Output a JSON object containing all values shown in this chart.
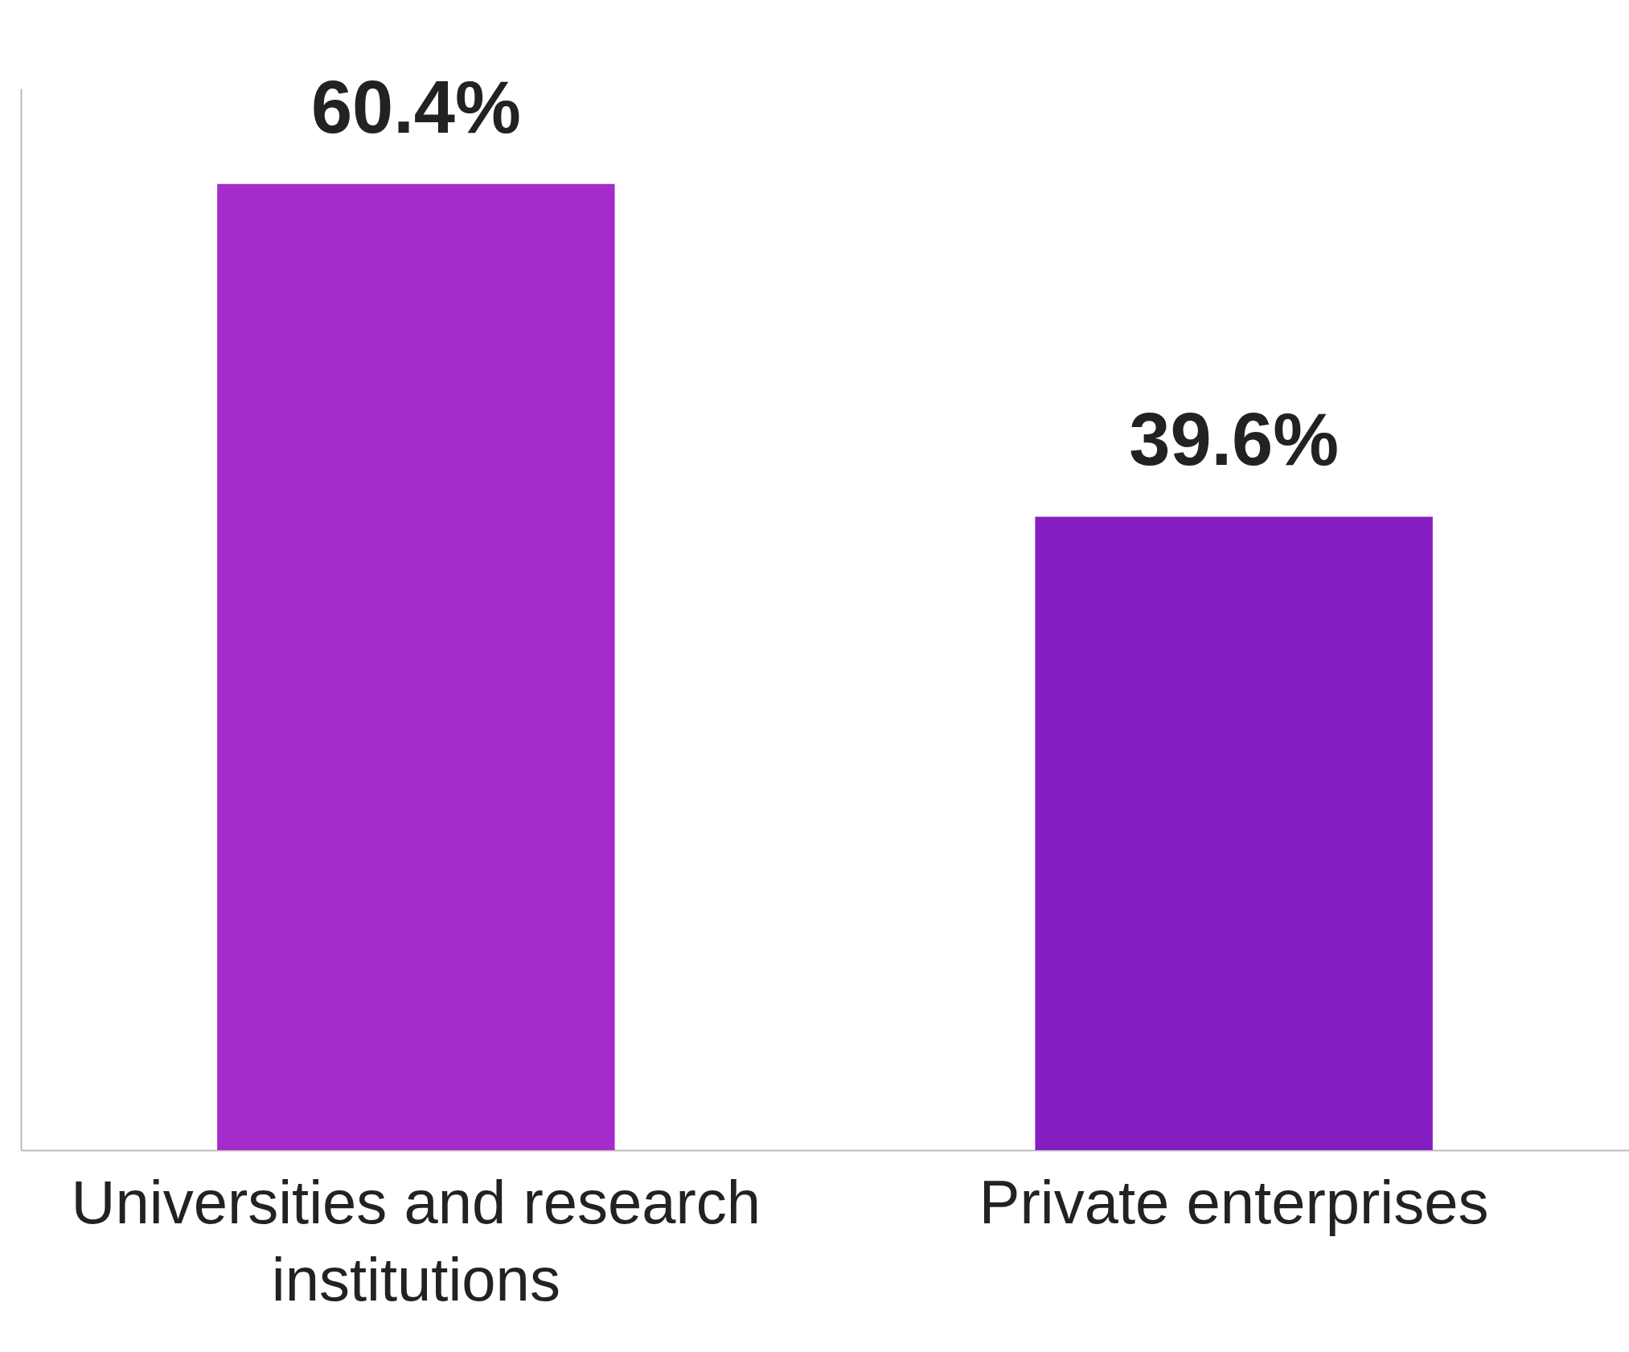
{
  "chart_data": {
    "type": "bar",
    "categories": [
      "Universities and research institutions",
      "Private enterprises"
    ],
    "values": [
      60.4,
      39.6
    ],
    "colors": [
      "#a52bcb",
      "#861dc1"
    ],
    "value_labels": [
      "60.4%",
      "39.6%"
    ],
    "grid": false
  }
}
